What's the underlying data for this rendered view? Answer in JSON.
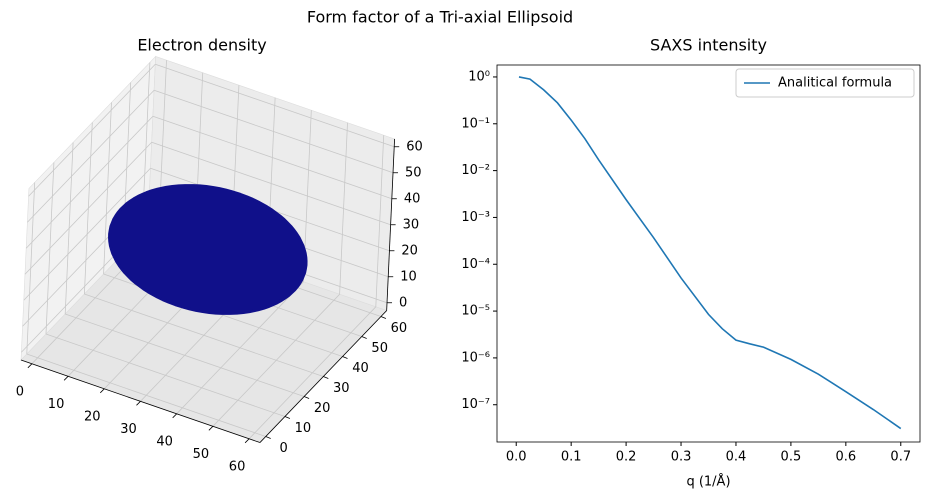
{
  "title": "Form factor of a Tri-axial Ellipsoid",
  "chart_data": [
    {
      "type": "scatter3d",
      "title": "Electron density",
      "center": [
        30,
        30,
        30
      ],
      "radii": [
        25,
        20,
        15
      ],
      "color": "#10108a",
      "xlim": [
        -3,
        63
      ],
      "ylim": [
        -3,
        63
      ],
      "zlim": [
        -3,
        63
      ],
      "xticks": [
        0,
        10,
        20,
        30,
        40,
        50,
        60
      ],
      "yticks": [
        0,
        10,
        20,
        30,
        40,
        50,
        60
      ],
      "zticks": [
        0,
        10,
        20,
        30,
        40,
        50,
        60
      ],
      "grid": true
    },
    {
      "type": "line",
      "title": "SAXS intensity",
      "xlabel": "q (1/Å)",
      "x": [
        0.005,
        0.025,
        0.05,
        0.075,
        0.1,
        0.125,
        0.15,
        0.2,
        0.25,
        0.3,
        0.35,
        0.375,
        0.4,
        0.425,
        0.45,
        0.5,
        0.55,
        0.6,
        0.65,
        0.7
      ],
      "series": [
        {
          "name": "Analitical formula",
          "color": "#1f77b4",
          "values": [
            1.0,
            0.9,
            0.53,
            0.28,
            0.12,
            0.048,
            0.017,
            0.0024,
            0.00037,
            5.1e-05,
            8.5e-06,
            4.2e-06,
            2.4e-06,
            2e-06,
            1.7e-06,
            9.3e-07,
            4.5e-07,
            1.9e-07,
            7.9e-08,
            3.1e-08
          ]
        }
      ],
      "xlim": [
        -0.035,
        0.735
      ],
      "ylim": [
        1.6e-08,
        1.8
      ],
      "log_y": true,
      "legend": "upper right",
      "xticks": [
        {
          "value": 0,
          "label": "0.0"
        },
        0.1,
        0.2,
        0.3,
        0.4,
        0.5,
        0.6,
        0.7
      ],
      "yticks": [
        {
          "value": 1,
          "label": "10⁰"
        },
        {
          "value": 0.1,
          "label": "10⁻¹"
        },
        {
          "value": 0.01,
          "label": "10⁻²"
        },
        {
          "value": 0.001,
          "label": "10⁻³"
        },
        {
          "value": 0.0001,
          "label": "10⁻⁴"
        },
        {
          "value": 1e-05,
          "label": "10⁻⁵"
        },
        {
          "value": 1e-06,
          "label": "10⁻⁶"
        },
        {
          "value": 1e-07,
          "label": "10⁻⁷"
        }
      ]
    }
  ]
}
